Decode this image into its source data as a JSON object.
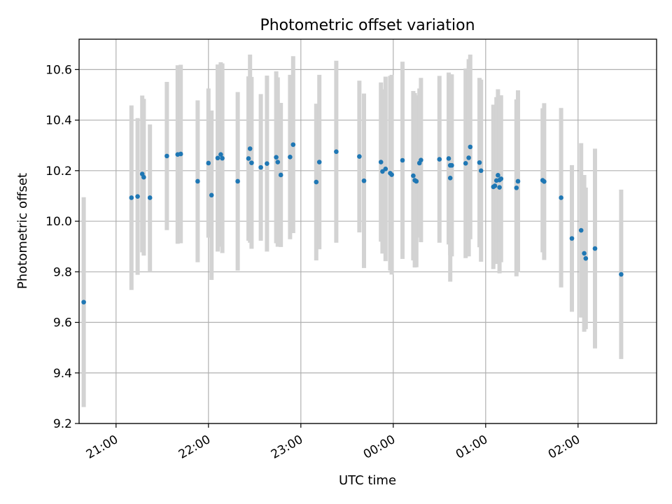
{
  "chart_data": {
    "type": "scatter",
    "title": "Photometric offset variation",
    "xlabel": "UTC time",
    "ylabel": "Photometric offset",
    "x_axis": {
      "kind": "time",
      "min": "20:36",
      "max": "02:51",
      "ticks": [
        "21:00",
        "22:00",
        "23:00",
        "00:00",
        "01:00",
        "02:00"
      ]
    },
    "ylim": [
      9.2,
      10.72
    ],
    "y_ticks": [
      "9.2",
      "9.4",
      "9.6",
      "9.8",
      "10.0",
      "10.2",
      "10.4",
      "10.6"
    ],
    "grid": true,
    "colors": {
      "marker": "#1f77b4",
      "errorbar": "#d3d3d3",
      "grid": "#b0b0b0"
    },
    "points": [
      {
        "t": "20:39",
        "y": 9.68,
        "err": 0.415
      },
      {
        "t": "21:10",
        "y": 10.093,
        "err": 0.365
      },
      {
        "t": "21:14",
        "y": 10.098,
        "err": 0.31
      },
      {
        "t": "21:17",
        "y": 10.187,
        "err": 0.31
      },
      {
        "t": "21:18",
        "y": 10.174,
        "err": 0.31
      },
      {
        "t": "21:22",
        "y": 10.093,
        "err": 0.29
      },
      {
        "t": "21:33",
        "y": 10.258,
        "err": 0.293
      },
      {
        "t": "21:40",
        "y": 10.264,
        "err": 0.353
      },
      {
        "t": "21:42",
        "y": 10.266,
        "err": 0.353
      },
      {
        "t": "21:53",
        "y": 10.158,
        "err": 0.32
      },
      {
        "t": "22:00",
        "y": 10.23,
        "err": 0.295
      },
      {
        "t": "22:02",
        "y": 10.103,
        "err": 0.335
      },
      {
        "t": "22:06",
        "y": 10.25,
        "err": 0.37
      },
      {
        "t": "22:08",
        "y": 10.264,
        "err": 0.365
      },
      {
        "t": "22:09",
        "y": 10.249,
        "err": 0.375
      },
      {
        "t": "22:19",
        "y": 10.158,
        "err": 0.353
      },
      {
        "t": "22:26",
        "y": 10.248,
        "err": 0.325
      },
      {
        "t": "22:27",
        "y": 10.287,
        "err": 0.372
      },
      {
        "t": "22:28",
        "y": 10.231,
        "err": 0.34
      },
      {
        "t": "22:34",
        "y": 10.213,
        "err": 0.29
      },
      {
        "t": "22:38",
        "y": 10.228,
        "err": 0.348
      },
      {
        "t": "22:44",
        "y": 10.253,
        "err": 0.34
      },
      {
        "t": "22:45",
        "y": 10.234,
        "err": 0.335
      },
      {
        "t": "22:47",
        "y": 10.183,
        "err": 0.285
      },
      {
        "t": "22:53",
        "y": 10.254,
        "err": 0.325
      },
      {
        "t": "22:55",
        "y": 10.303,
        "err": 0.35
      },
      {
        "t": "23:10",
        "y": 10.155,
        "err": 0.31
      },
      {
        "t": "23:12",
        "y": 10.234,
        "err": 0.345
      },
      {
        "t": "23:23",
        "y": 10.275,
        "err": 0.36
      },
      {
        "t": "23:38",
        "y": 10.256,
        "err": 0.3
      },
      {
        "t": "23:41",
        "y": 10.16,
        "err": 0.345
      },
      {
        "t": "23:52",
        "y": 10.234,
        "err": 0.315
      },
      {
        "t": "23:53",
        "y": 10.197,
        "err": 0.325
      },
      {
        "t": "23:55",
        "y": 10.207,
        "err": 0.365
      },
      {
        "t": "23:58",
        "y": 10.19,
        "err": 0.385
      },
      {
        "t": "23:59",
        "y": 10.184,
        "err": 0.395
      },
      {
        "t": "00:06",
        "y": 10.241,
        "err": 0.39
      },
      {
        "t": "00:13",
        "y": 10.18,
        "err": 0.335
      },
      {
        "t": "00:14",
        "y": 10.162,
        "err": 0.345
      },
      {
        "t": "00:15",
        "y": 10.158,
        "err": 0.34
      },
      {
        "t": "00:17",
        "y": 10.23,
        "err": 0.295
      },
      {
        "t": "00:18",
        "y": 10.242,
        "err": 0.325
      },
      {
        "t": "00:30",
        "y": 10.245,
        "err": 0.33
      },
      {
        "t": "00:36",
        "y": 10.248,
        "err": 0.34
      },
      {
        "t": "00:37",
        "y": 10.171,
        "err": 0.41
      },
      {
        "t": "00:37",
        "y": 10.221,
        "err": 0.355
      },
      {
        "t": "00:38",
        "y": 10.221,
        "err": 0.36
      },
      {
        "t": "00:47",
        "y": 10.229,
        "err": 0.375
      },
      {
        "t": "00:49",
        "y": 10.251,
        "err": 0.39
      },
      {
        "t": "00:50",
        "y": 10.294,
        "err": 0.365
      },
      {
        "t": "00:56",
        "y": 10.232,
        "err": 0.335
      },
      {
        "t": "00:57",
        "y": 10.2,
        "err": 0.36
      },
      {
        "t": "01:05",
        "y": 10.136,
        "err": 0.325
      },
      {
        "t": "01:06",
        "y": 10.14,
        "err": 0.3
      },
      {
        "t": "01:07",
        "y": 10.161,
        "err": 0.33
      },
      {
        "t": "01:08",
        "y": 10.182,
        "err": 0.34
      },
      {
        "t": "01:09",
        "y": 10.134,
        "err": 0.34
      },
      {
        "t": "01:09",
        "y": 10.163,
        "err": 0.32
      },
      {
        "t": "01:10",
        "y": 10.168,
        "err": 0.33
      },
      {
        "t": "01:20",
        "y": 10.132,
        "err": 0.35
      },
      {
        "t": "01:21",
        "y": 10.158,
        "err": 0.36
      },
      {
        "t": "01:37",
        "y": 10.162,
        "err": 0.285
      },
      {
        "t": "01:38",
        "y": 10.157,
        "err": 0.31
      },
      {
        "t": "01:49",
        "y": 10.093,
        "err": 0.355
      },
      {
        "t": "01:56",
        "y": 9.932,
        "err": 0.29
      },
      {
        "t": "02:02",
        "y": 9.964,
        "err": 0.345
      },
      {
        "t": "02:04",
        "y": 9.873,
        "err": 0.31
      },
      {
        "t": "02:05",
        "y": 9.853,
        "err": 0.28
      },
      {
        "t": "02:11",
        "y": 9.892,
        "err": 0.395
      },
      {
        "t": "02:28",
        "y": 9.79,
        "err": 0.335
      }
    ]
  }
}
